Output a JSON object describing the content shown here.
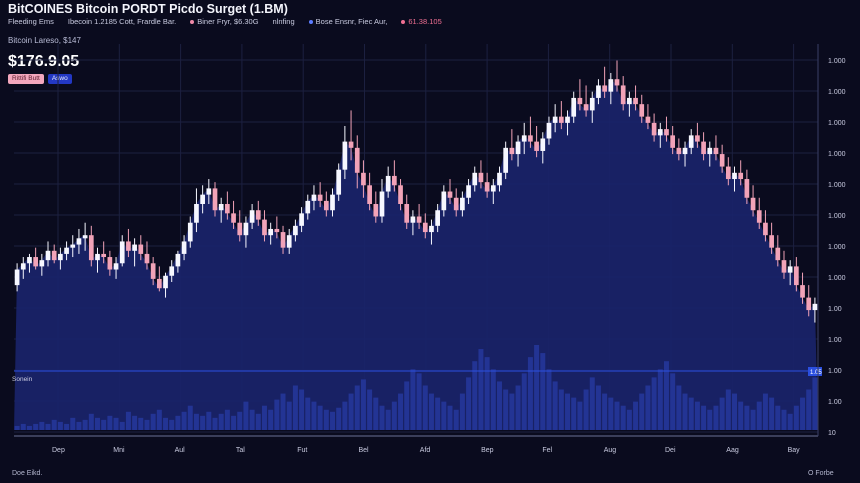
{
  "header": {
    "title": "BitCOINES Bitcoin PORDT Picdo Surget (1.BM)",
    "info": [
      {
        "text": "Fleeding Ems",
        "color": "#c9cbe0"
      },
      {
        "text": "Ibecoin 1.2185 Cott, Frardle Bar.",
        "color": "#c9cbe0"
      },
      {
        "text": "Biner Fryr, $6.30G",
        "color": "#ef8aa8"
      },
      {
        "text": "nlnfing",
        "color": "#ef8aa8"
      },
      {
        "text": "Bose Ensnr, Fiec Aur,",
        "color": "#5c7cff"
      },
      {
        "text": "61.38.105",
        "color": "#ef6f92"
      }
    ],
    "subtitle": "Bitcoin Lareso, $147",
    "price": "$176.9.05",
    "badges": [
      "Rittifi Butt",
      "Aswo"
    ]
  },
  "footer": {
    "left": "Doe Eikd.",
    "right": "O Forbe"
  },
  "colors": {
    "up": "#f6f7ff",
    "down": "#f2a3b8",
    "area": "#19236b",
    "volume": "#26379c",
    "grid": "#1c2040",
    "axis": "#c9cbe0",
    "overlay": "#2b4fe0"
  },
  "chart_data": {
    "type": "candlestick",
    "x_tick_labels": [
      "Dep",
      "Mni",
      "Aul",
      "Tal",
      "Fut",
      "Bel",
      "Afd",
      "Bep",
      "Fel",
      "Aug",
      "Dei",
      "Aag",
      "Bay"
    ],
    "y_tick_labels": [
      "1.000",
      "1.000",
      "1.000",
      "1.000",
      "1.000",
      "1.000",
      "1.000",
      "1.000",
      "1.00",
      "1.00",
      "1.00",
      "1.00",
      "10"
    ],
    "overlay_label": "Sonein",
    "overlay_value": "1.05",
    "note": "Price values are in the chart's y-axis units (0 = bottom, 100 = top of the price range).",
    "ohlc": [
      [
        24,
        31,
        22,
        29
      ],
      [
        29,
        33,
        26,
        31
      ],
      [
        31,
        34,
        28,
        33
      ],
      [
        33,
        36,
        29,
        30
      ],
      [
        30,
        34,
        27,
        32
      ],
      [
        32,
        38,
        30,
        35
      ],
      [
        35,
        37,
        31,
        32
      ],
      [
        32,
        36,
        29,
        34
      ],
      [
        34,
        38,
        32,
        36
      ],
      [
        36,
        40,
        33,
        37
      ],
      [
        37,
        42,
        34,
        39
      ],
      [
        39,
        44,
        35,
        40
      ],
      [
        40,
        43,
        30,
        32
      ],
      [
        32,
        36,
        28,
        34
      ],
      [
        34,
        38,
        31,
        33
      ],
      [
        33,
        35,
        27,
        29
      ],
      [
        29,
        33,
        26,
        31
      ],
      [
        31,
        40,
        30,
        38
      ],
      [
        38,
        42,
        33,
        35
      ],
      [
        35,
        39,
        30,
        37
      ],
      [
        37,
        40,
        32,
        34
      ],
      [
        34,
        38,
        29,
        31
      ],
      [
        31,
        33,
        24,
        26
      ],
      [
        26,
        30,
        22,
        23
      ],
      [
        23,
        28,
        20,
        27
      ],
      [
        27,
        32,
        25,
        30
      ],
      [
        30,
        35,
        28,
        34
      ],
      [
        34,
        40,
        32,
        38
      ],
      [
        38,
        46,
        36,
        44
      ],
      [
        44,
        55,
        41,
        50
      ],
      [
        50,
        56,
        47,
        53
      ],
      [
        53,
        58,
        50,
        55
      ],
      [
        55,
        57,
        46,
        48
      ],
      [
        48,
        52,
        44,
        50
      ],
      [
        50,
        54,
        45,
        47
      ],
      [
        47,
        51,
        42,
        44
      ],
      [
        44,
        48,
        38,
        40
      ],
      [
        40,
        46,
        36,
        44
      ],
      [
        44,
        50,
        42,
        48
      ],
      [
        48,
        51,
        43,
        45
      ],
      [
        45,
        48,
        38,
        40
      ],
      [
        40,
        44,
        37,
        42
      ],
      [
        42,
        46,
        39,
        41
      ],
      [
        41,
        43,
        34,
        36
      ],
      [
        36,
        42,
        34,
        40
      ],
      [
        40,
        45,
        38,
        43
      ],
      [
        43,
        49,
        41,
        47
      ],
      [
        47,
        53,
        45,
        51
      ],
      [
        51,
        56,
        48,
        53
      ],
      [
        53,
        57,
        49,
        51
      ],
      [
        51,
        54,
        46,
        48
      ],
      [
        48,
        55,
        46,
        53
      ],
      [
        53,
        63,
        51,
        61
      ],
      [
        61,
        75,
        58,
        70
      ],
      [
        70,
        80,
        64,
        68
      ],
      [
        68,
        72,
        55,
        60
      ],
      [
        60,
        64,
        52,
        56
      ],
      [
        56,
        60,
        48,
        50
      ],
      [
        50,
        54,
        44,
        46
      ],
      [
        46,
        58,
        44,
        54
      ],
      [
        54,
        62,
        52,
        59
      ],
      [
        59,
        64,
        54,
        56
      ],
      [
        56,
        58,
        48,
        50
      ],
      [
        50,
        53,
        42,
        44
      ],
      [
        44,
        48,
        40,
        46
      ],
      [
        46,
        50,
        42,
        44
      ],
      [
        44,
        47,
        39,
        41
      ],
      [
        41,
        45,
        37,
        43
      ],
      [
        43,
        50,
        41,
        48
      ],
      [
        48,
        56,
        46,
        54
      ],
      [
        54,
        58,
        50,
        52
      ],
      [
        52,
        55,
        46,
        48
      ],
      [
        48,
        54,
        46,
        52
      ],
      [
        52,
        58,
        50,
        56
      ],
      [
        56,
        62,
        54,
        60
      ],
      [
        60,
        64,
        55,
        57
      ],
      [
        57,
        60,
        52,
        54
      ],
      [
        54,
        58,
        50,
        56
      ],
      [
        56,
        62,
        54,
        60
      ],
      [
        60,
        70,
        58,
        68
      ],
      [
        68,
        74,
        64,
        66
      ],
      [
        66,
        72,
        62,
        70
      ],
      [
        70,
        76,
        66,
        72
      ],
      [
        72,
        78,
        68,
        70
      ],
      [
        70,
        75,
        65,
        67
      ],
      [
        67,
        73,
        63,
        71
      ],
      [
        71,
        78,
        69,
        76
      ],
      [
        76,
        82,
        73,
        78
      ],
      [
        78,
        83,
        74,
        76
      ],
      [
        76,
        80,
        72,
        78
      ],
      [
        78,
        86,
        76,
        84
      ],
      [
        84,
        90,
        80,
        82
      ],
      [
        82,
        88,
        78,
        80
      ],
      [
        80,
        86,
        76,
        84
      ],
      [
        84,
        90,
        82,
        88
      ],
      [
        88,
        94,
        84,
        86
      ],
      [
        86,
        92,
        82,
        90
      ],
      [
        90,
        96,
        86,
        88
      ],
      [
        88,
        91,
        80,
        82
      ],
      [
        82,
        86,
        78,
        84
      ],
      [
        84,
        88,
        80,
        82
      ],
      [
        82,
        85,
        76,
        78
      ],
      [
        78,
        82,
        74,
        76
      ],
      [
        76,
        79,
        70,
        72
      ],
      [
        72,
        76,
        68,
        74
      ],
      [
        74,
        78,
        70,
        72
      ],
      [
        72,
        75,
        66,
        68
      ],
      [
        68,
        71,
        64,
        66
      ],
      [
        66,
        70,
        62,
        68
      ],
      [
        68,
        74,
        66,
        72
      ],
      [
        72,
        76,
        68,
        70
      ],
      [
        70,
        73,
        64,
        66
      ],
      [
        66,
        70,
        62,
        68
      ],
      [
        68,
        72,
        64,
        66
      ],
      [
        66,
        69,
        60,
        62
      ],
      [
        62,
        65,
        56,
        58
      ],
      [
        58,
        62,
        54,
        60
      ],
      [
        60,
        64,
        56,
        58
      ],
      [
        58,
        61,
        50,
        52
      ],
      [
        52,
        56,
        46,
        48
      ],
      [
        48,
        52,
        42,
        44
      ],
      [
        44,
        48,
        38,
        40
      ],
      [
        40,
        44,
        34,
        36
      ],
      [
        36,
        40,
        30,
        32
      ],
      [
        32,
        35,
        26,
        28
      ],
      [
        28,
        32,
        24,
        30
      ],
      [
        30,
        33,
        22,
        24
      ],
      [
        24,
        28,
        18,
        20
      ],
      [
        20,
        24,
        14,
        16
      ],
      [
        16,
        20,
        12,
        18
      ]
    ],
    "volume": [
      2,
      3,
      2,
      3,
      4,
      3,
      5,
      4,
      3,
      6,
      4,
      5,
      8,
      6,
      5,
      7,
      6,
      4,
      9,
      7,
      6,
      5,
      8,
      10,
      6,
      5,
      7,
      9,
      12,
      8,
      7,
      9,
      6,
      8,
      10,
      7,
      9,
      14,
      10,
      8,
      12,
      10,
      15,
      18,
      14,
      22,
      20,
      16,
      14,
      12,
      10,
      9,
      11,
      14,
      18,
      22,
      25,
      20,
      16,
      12,
      10,
      14,
      18,
      24,
      30,
      28,
      22,
      18,
      16,
      14,
      12,
      10,
      18,
      26,
      34,
      40,
      36,
      30,
      24,
      20,
      18,
      22,
      28,
      36,
      42,
      38,
      30,
      24,
      20,
      18,
      16,
      14,
      20,
      26,
      22,
      18,
      16,
      14,
      12,
      10,
      14,
      18,
      22,
      26,
      30,
      34,
      28,
      22,
      18,
      16,
      14,
      12,
      10,
      12,
      16,
      20,
      18,
      14,
      12,
      10,
      14,
      18,
      16,
      12,
      10,
      8,
      12,
      16,
      20,
      26
    ]
  }
}
